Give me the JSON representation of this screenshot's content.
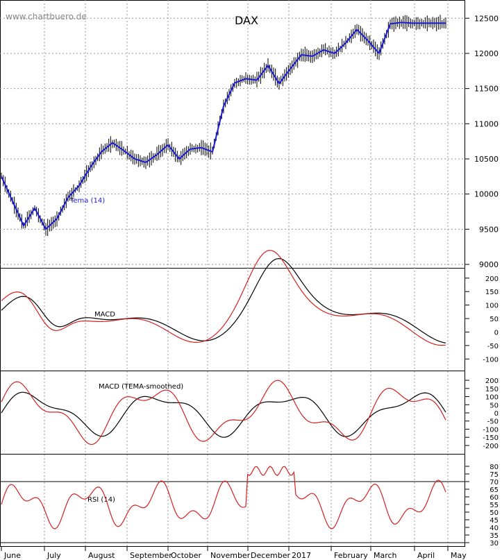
{
  "watermark": "www.chartbuero.de",
  "chart_data": [
    {
      "type": "line",
      "title": "DAX",
      "series": [
        {
          "name": "Tema (14)",
          "color": "#1a1ad9"
        }
      ],
      "close_color": "#000000",
      "ylim": [
        9000,
        12700
      ],
      "yticks": [
        9000,
        9500,
        10000,
        10500,
        11000,
        11500,
        12000,
        12500
      ],
      "x": [
        0,
        10,
        20,
        30,
        40,
        50,
        60,
        70,
        80,
        90,
        100,
        110,
        120,
        130,
        140,
        150,
        160,
        170,
        180,
        190,
        200,
        210,
        220,
        230,
        240
      ],
      "close": [
        10250,
        9900,
        9550,
        9800,
        9500,
        9650,
        9950,
        10120,
        10380,
        10600,
        10730,
        10620,
        10500,
        10450,
        10560,
        10700,
        10500,
        10640,
        10660,
        10600,
        11250,
        11580,
        11640,
        11620,
        11830
      ],
      "x2": [
        240,
        250,
        260,
        270,
        280,
        290,
        300,
        310,
        320,
        330,
        340,
        350,
        360,
        370,
        380,
        390,
        400
      ],
      "close2": [
        11830,
        11570,
        11780,
        11980,
        11960,
        12050,
        12000,
        12150,
        12340,
        12180,
        12000,
        12420,
        12440,
        12430,
        12430,
        12430,
        12430
      ]
    },
    {
      "type": "line",
      "name_label": "MACD",
      "series": [
        {
          "color": "#000000"
        },
        {
          "color": "#d42020"
        }
      ],
      "ylim": [
        -130,
        220
      ],
      "yticks": [
        200,
        150,
        100,
        50,
        0,
        -50,
        -100
      ]
    },
    {
      "type": "line",
      "name_label": "MACD (TEMA-smoothed)",
      "series": [
        {
          "color": "#000000"
        },
        {
          "color": "#d42020"
        }
      ],
      "ylim": [
        -230,
        230
      ],
      "yticks": [
        200,
        150,
        100,
        50,
        0,
        -50,
        -100,
        -150,
        -200
      ]
    },
    {
      "type": "line",
      "name_label": "RSI (14)",
      "series": [
        {
          "color": "#d42020"
        }
      ],
      "ylim": [
        30,
        85
      ],
      "yticks": [
        80,
        75,
        70,
        65,
        60,
        55,
        50,
        45,
        40,
        35,
        30
      ],
      "levels": [
        70,
        30
      ]
    }
  ],
  "x_axis": {
    "months": [
      "June",
      "July",
      "August",
      "September",
      "October",
      "November",
      "December",
      "2017",
      "February",
      "March",
      "April",
      "May"
    ]
  }
}
